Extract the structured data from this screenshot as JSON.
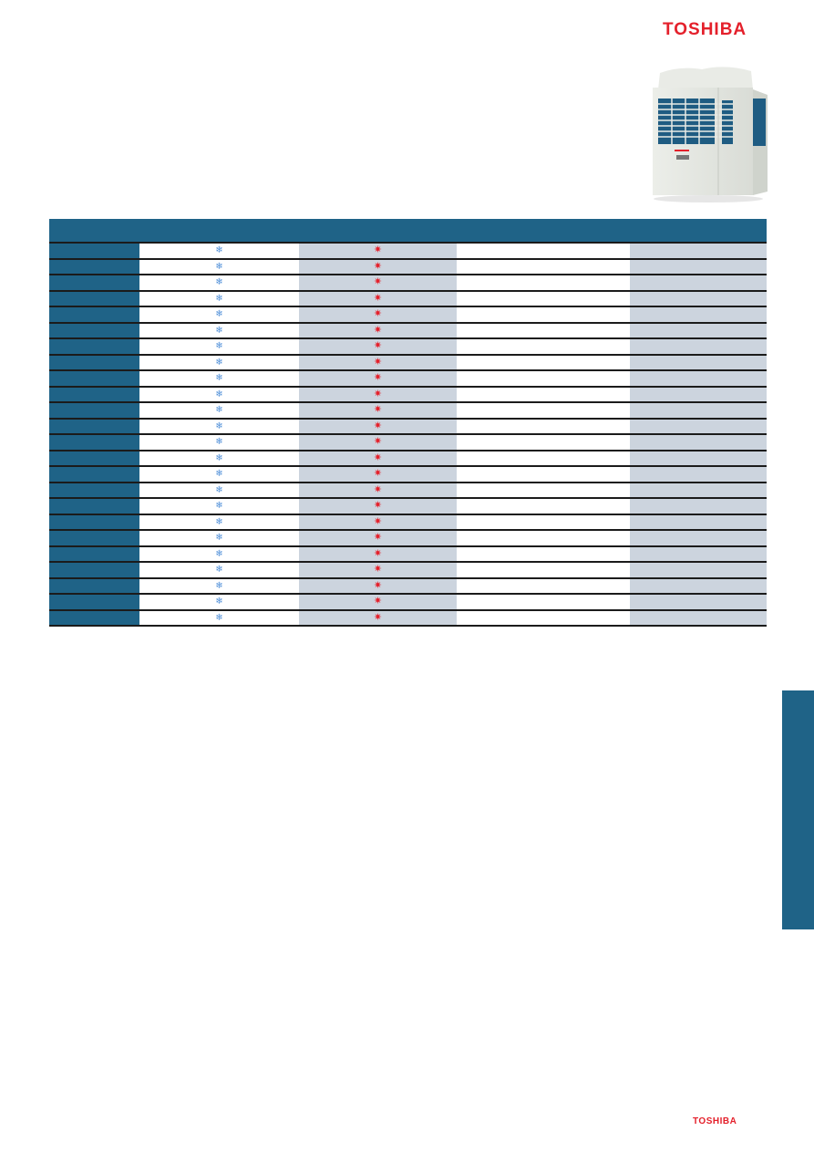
{
  "brand": {
    "name": "TOSHIBA",
    "color": "#e4202b"
  },
  "colors": {
    "header": "#1f6387",
    "row_shade": "#ccd4de",
    "cool_icon": "#4f8fd8",
    "heat_icon": "#e4202b"
  },
  "table": {
    "columns": 5,
    "row_count": 24,
    "icons": {
      "cooling": "snowflake-icon",
      "heating": "sun-icon"
    },
    "cooling_glyph": "❄",
    "heating_glyph": "✷"
  }
}
